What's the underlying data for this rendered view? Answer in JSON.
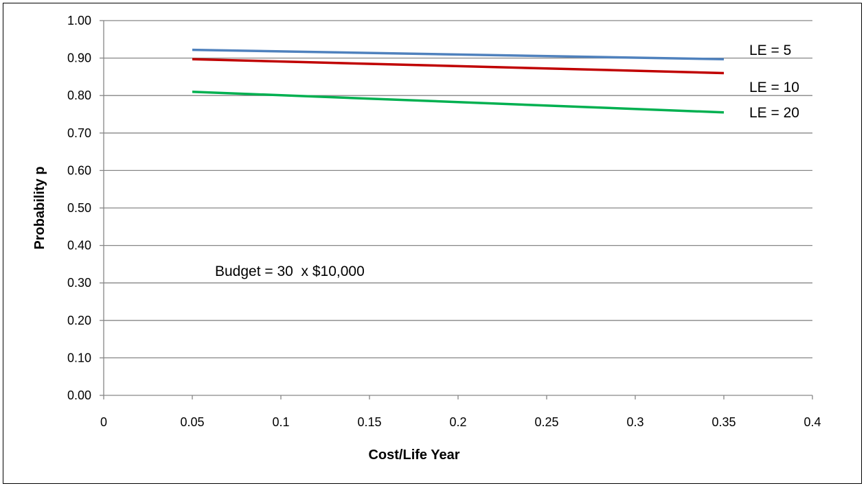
{
  "chart_data": {
    "type": "line",
    "title": "",
    "xlabel": "Cost/Life Year",
    "ylabel": "Probability p",
    "xlim": [
      0,
      0.4
    ],
    "ylim": [
      0,
      1.0
    ],
    "x_ticks": [
      "0",
      "0.05",
      "0.1",
      "0.15",
      "0.2",
      "0.25",
      "0.3",
      "0.35",
      "0.4"
    ],
    "y_ticks": [
      "0.00",
      "0.10",
      "0.20",
      "0.30",
      "0.40",
      "0.50",
      "0.60",
      "0.70",
      "0.80",
      "0.90",
      "1.00"
    ],
    "grid": "horizontal",
    "legend": "none",
    "series": [
      {
        "name": "LE = 5",
        "color": "#4F81BD",
        "x": [
          0.05,
          0.35
        ],
        "y": [
          0.922,
          0.897
        ]
      },
      {
        "name": "LE = 10",
        "color": "#C00000",
        "x": [
          0.05,
          0.35
        ],
        "y": [
          0.897,
          0.86
        ]
      },
      {
        "name": "LE = 20",
        "color": "#00B050",
        "x": [
          0.05,
          0.35
        ],
        "y": [
          0.81,
          0.755
        ]
      }
    ],
    "annotations": [
      {
        "text": "Budget = 30  x $10,000"
      }
    ]
  }
}
